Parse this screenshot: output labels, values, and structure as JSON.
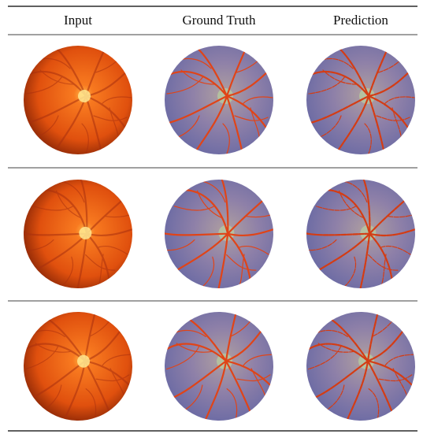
{
  "table": {
    "headers": [
      "Input",
      "Ground Truth",
      "Prediction"
    ]
  }
}
